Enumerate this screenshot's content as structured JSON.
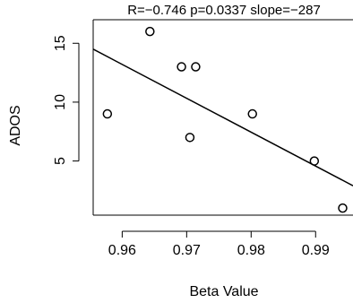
{
  "chart_data": {
    "type": "scatter",
    "title": "R=−0.746 p=0.0337 slope=−287",
    "xlabel": "Beta Value",
    "ylabel": "ADOS",
    "xlim": [
      0.9555,
      0.9958
    ],
    "ylim": [
      0.4,
      17.0
    ],
    "x_ticks": [
      0.96,
      0.97,
      0.98,
      0.99
    ],
    "x_tick_labels": [
      "0.96",
      "0.97",
      "0.98",
      "0.99"
    ],
    "y_ticks": [
      5,
      10,
      15
    ],
    "y_tick_labels": [
      "5",
      "10",
      "15"
    ],
    "points": [
      {
        "x": 0.9577,
        "y": 9
      },
      {
        "x": 0.9643,
        "y": 16
      },
      {
        "x": 0.9692,
        "y": 13
      },
      {
        "x": 0.9714,
        "y": 13
      },
      {
        "x": 0.9705,
        "y": 7
      },
      {
        "x": 0.9802,
        "y": 9
      },
      {
        "x": 0.9898,
        "y": 5
      },
      {
        "x": 0.9942,
        "y": 1
      }
    ],
    "fit_line": {
      "x": [
        0.9555,
        0.9958
      ],
      "y": [
        14.5,
        2.9
      ]
    },
    "grid": false,
    "legend": "none"
  }
}
